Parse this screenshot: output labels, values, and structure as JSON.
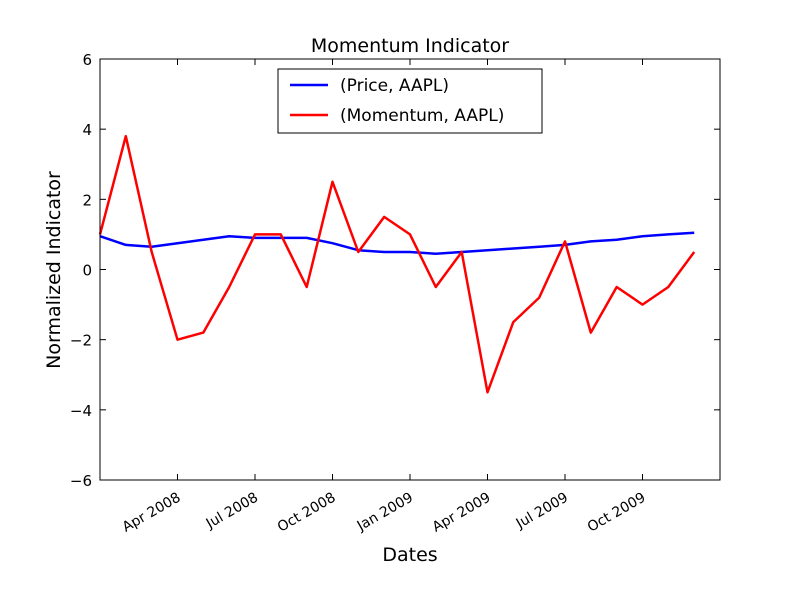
{
  "chart_data": {
    "type": "line",
    "title": "Momentum Indicator",
    "x_label": "Dates",
    "y_label": "Normalized Indicator",
    "x": [
      "2008-01",
      "2008-02",
      "2008-03",
      "2008-04",
      "2008-05",
      "2008-06",
      "2008-07",
      "2008-08",
      "2008-09",
      "2008-10",
      "2008-11",
      "2008-12",
      "2009-01",
      "2009-02",
      "2009-03",
      "2009-04",
      "2009-05",
      "2009-06",
      "2009-07",
      "2009-08",
      "2009-09",
      "2009-10",
      "2009-11",
      "2009-12"
    ],
    "series": [
      {
        "name": "(Price, AAPL)",
        "color": "#0000ff",
        "values": [
          0.95,
          0.7,
          0.65,
          0.75,
          0.85,
          0.95,
          0.9,
          0.9,
          0.9,
          0.75,
          0.55,
          0.5,
          0.5,
          0.45,
          0.5,
          0.55,
          0.6,
          0.65,
          0.7,
          0.8,
          0.85,
          0.95,
          1.0,
          1.05
        ]
      },
      {
        "name": "(Momentum, AAPL)",
        "color": "#ff0000",
        "values": [
          1.0,
          3.8,
          0.5,
          -2.0,
          -1.8,
          -0.5,
          1.0,
          1.0,
          -0.5,
          2.5,
          0.5,
          1.5,
          1.0,
          -0.5,
          0.5,
          -3.5,
          -1.5,
          -0.8,
          0.8,
          -1.8,
          -0.5,
          -1.0,
          -0.5,
          0.5
        ]
      }
    ],
    "xlim": [
      "2008-01",
      "2010-01"
    ],
    "xticks": [
      {
        "value": "2008-04",
        "label": "Apr 2008"
      },
      {
        "value": "2008-07",
        "label": "Jul 2008"
      },
      {
        "value": "2008-10",
        "label": "Oct 2008"
      },
      {
        "value": "2009-01",
        "label": "Jan 2009"
      },
      {
        "value": "2009-04",
        "label": "Apr 2009"
      },
      {
        "value": "2009-07",
        "label": "Jul 2009"
      },
      {
        "value": "2009-10",
        "label": "Oct 2009"
      }
    ],
    "ylim": [
      -6,
      6
    ],
    "yticks": [
      {
        "value": -6,
        "label": "−6"
      },
      {
        "value": -4,
        "label": "−4"
      },
      {
        "value": -2,
        "label": "−2"
      },
      0,
      2,
      4,
      6
    ],
    "legend": "upper center",
    "grid": false
  }
}
